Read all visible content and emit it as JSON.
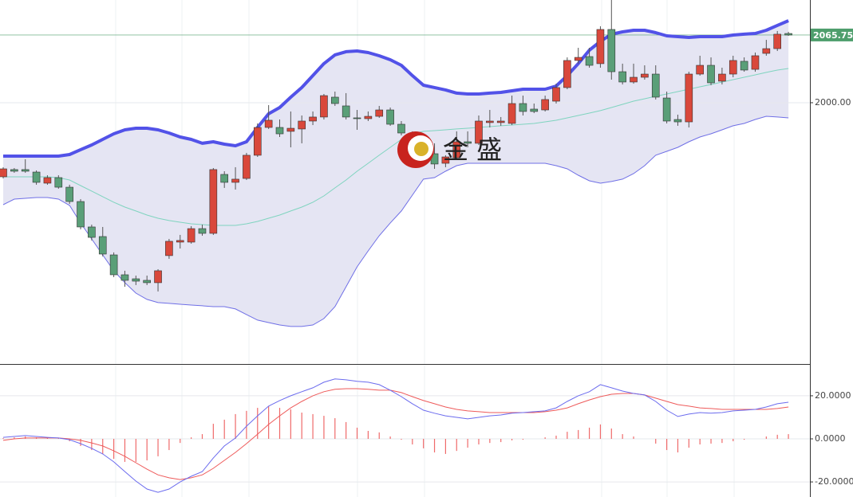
{
  "chart_data": [
    {
      "type": "candlestick",
      "open": [
        1928.1,
        1935.1,
        1935.1,
        1932.7,
        1921.9,
        1927.3,
        1918.0,
        1904.1,
        1879.4,
        1870.1,
        1852.3,
        1833.0,
        1829.1,
        1827.6,
        1825.3,
        1851.6,
        1864.7,
        1864.7,
        1877.8,
        1873.2,
        1930.4,
        1922.7,
        1926.5,
        1949.0,
        1976.0,
        1976.0,
        1972.2,
        1974.5,
        1982.2,
        1986.1,
        2005.4,
        1996.9,
        1985.3,
        1984.5,
        1986.8,
        1993.0,
        1979.1,
        1968.3,
        1960.6,
        1950.5,
        1941.2,
        1946.6,
        1962.1,
        1960.6,
        1980.7,
        1980.7,
        1979.9,
        1999.2,
        1993.8,
        1993.0,
        2001.5,
        2014.7,
        2041.0,
        2044.8,
        2037.9,
        2071.1,
        2030.1,
        2020.1,
        2024.7,
        2027.8,
        2004.6,
        1983.7,
        1981.4,
        2027.8,
        2036.3,
        2020.9,
        2027.8,
        2040.2,
        2032.4,
        2047.9,
        2052.5,
        2067.2
      ],
      "high": [
        1937.4,
        1936.6,
        1945.1,
        1934.3,
        1929.6,
        1929.6,
        1920.4,
        1906.4,
        1881.7,
        1879.4,
        1854.7,
        1836.9,
        1832.2,
        1832.2,
        1838.4,
        1867.8,
        1871.7,
        1880.2,
        1881.7,
        1936.6,
        1933.5,
        1937.4,
        1951.3,
        1979.9,
        1997.7,
        1983.7,
        1991.5,
        1987.6,
        1991.5,
        2008.5,
        2010.8,
        2009.3,
        1993.0,
        1991.5,
        1996.9,
        1995.3,
        1982.2,
        1972.2,
        1964.4,
        1960.6,
        1949.0,
        1972.2,
        1972.2,
        1987.6,
        1993.0,
        1986.1,
        2006.9,
        2006.9,
        1999.2,
        2006.9,
        2018.5,
        2044.0,
        2053.3,
        2053.3,
        2074.2,
        2099.7,
        2037.9,
        2037.9,
        2036.3,
        2036.3,
        2010.8,
        1988.4,
        2030.1,
        2045.6,
        2044.0,
        2034.0,
        2045.6,
        2044.0,
        2048.7,
        2061.0,
        2069.6,
        2068.8
      ],
      "low": [
        1926.5,
        1932.0,
        1932.0,
        1920.4,
        1920.4,
        1916.5,
        1901.8,
        1877.1,
        1866.3,
        1850.8,
        1830.7,
        1821.4,
        1823.0,
        1823.0,
        1816.8,
        1848.5,
        1858.5,
        1863.2,
        1870.9,
        1871.7,
        1917.3,
        1915.7,
        1925.0,
        1947.4,
        1974.5,
        1966.7,
        1956.7,
        1960.6,
        1978.3,
        1983.7,
        1996.9,
        1983.7,
        1973.7,
        1982.2,
        1985.3,
        1977.6,
        1968.3,
        1956.7,
        1949.0,
        1935.8,
        1937.4,
        1945.1,
        1956.7,
        1959.0,
        1976.0,
        1977.6,
        1978.3,
        1987.6,
        1989.9,
        1991.5,
        1999.2,
        2013.1,
        2037.9,
        2034.0,
        2034.0,
        2022.4,
        2017.7,
        2018.5,
        2022.4,
        2003.1,
        1979.9,
        1977.6,
        1976.0,
        2026.3,
        2017.0,
        2017.7,
        2024.7,
        2030.1,
        2030.1,
        2045.6,
        2050.2,
        2064.9
      ],
      "close": [
        1935.8,
        1933.5,
        1933.5,
        1922.7,
        1927.3,
        1918.0,
        1904.1,
        1879.4,
        1869.3,
        1853.1,
        1833.0,
        1827.6,
        1826.8,
        1825.3,
        1836.9,
        1865.5,
        1866.3,
        1877.8,
        1873.2,
        1935.1,
        1922.7,
        1925.8,
        1949.0,
        1976.0,
        1983.0,
        1969.8,
        1975.2,
        1982.2,
        1986.1,
        2006.9,
        1999.2,
        1986.1,
        1984.5,
        1986.8,
        1993.0,
        1979.1,
        1970.6,
        1960.6,
        1951.3,
        1940.5,
        1947.4,
        1962.1,
        1960.6,
        1982.2,
        1982.2,
        1982.2,
        1999.2,
        1991.5,
        1991.5,
        2003.1,
        2014.7,
        2041.0,
        2044.0,
        2036.3,
        2071.1,
        2030.1,
        2020.1,
        2024.7,
        2027.8,
        2005.4,
        1982.2,
        1981.4,
        2027.8,
        2036.3,
        2019.3,
        2027.8,
        2041.0,
        2031.7,
        2045.6,
        2052.5,
        2066.5,
        2065.7
      ],
      "up_color": "#d9483b",
      "down_color": "#5a9f78",
      "bands": {
        "upper": {
          "color": "#5252e8",
          "values": [
            1948.2,
            1948.2,
            1948.2,
            1948.2,
            1948.2,
            1948.2,
            1949.7,
            1954.4,
            1959.0,
            1964.4,
            1969.8,
            1973.7,
            1975.2,
            1975.2,
            1973.7,
            1970.6,
            1966.7,
            1964.4,
            1960.6,
            1962.1,
            1959.8,
            1958.2,
            1962.1,
            1976.0,
            1989.2,
            1995.3,
            2005.4,
            2014.7,
            2026.3,
            2037.9,
            2046.4,
            2049.5,
            2050.2,
            2048.7,
            2045.6,
            2041.7,
            2036.3,
            2026.3,
            2017.0,
            2014.7,
            2012.4,
            2009.3,
            2008.5,
            2008.5,
            2009.3,
            2010.0,
            2011.6,
            2013.1,
            2013.1,
            2013.1,
            2016.2,
            2026.3,
            2037.9,
            2051.0,
            2059.5,
            2066.5,
            2068.8,
            2070.3,
            2070.3,
            2068.0,
            2064.9,
            2064.1,
            2063.4,
            2064.1,
            2064.1,
            2064.1,
            2065.7,
            2066.5,
            2067.2,
            2070.3,
            2075.0,
            2079.6
          ]
        },
        "middle": {
          "color": "#7fd4bf",
          "values": [
            1928.1,
            1928.1,
            1928.1,
            1928.1,
            1928.1,
            1927.3,
            1925.0,
            1919.6,
            1914.2,
            1908.8,
            1903.4,
            1898.7,
            1894.9,
            1891.0,
            1887.9,
            1885.6,
            1884.0,
            1882.5,
            1881.7,
            1880.9,
            1880.9,
            1880.9,
            1882.5,
            1884.8,
            1887.9,
            1891.0,
            1894.9,
            1898.7,
            1903.4,
            1909.5,
            1917.3,
            1925.0,
            1933.5,
            1941.2,
            1949.0,
            1956.7,
            1964.4,
            1969.8,
            1972.2,
            1972.9,
            1973.7,
            1974.5,
            1975.2,
            1976.0,
            1976.8,
            1977.6,
            1978.3,
            1979.1,
            1979.9,
            1981.4,
            1983.0,
            1985.3,
            1987.6,
            1989.9,
            1992.3,
            1995.3,
            1998.4,
            2001.5,
            2003.8,
            2006.2,
            2008.5,
            2010.8,
            2013.1,
            2015.4,
            2017.7,
            2020.1,
            2022.4,
            2024.7,
            2027.0,
            2029.4,
            2031.7,
            2033.2
          ]
        },
        "lower": {
          "color": "#6f6fe6",
          "values": [
            1901.0,
            1906.4,
            1907.2,
            1908.0,
            1908.0,
            1906.4,
            1900.3,
            1883.3,
            1867.8,
            1852.3,
            1836.9,
            1825.3,
            1815.2,
            1809.1,
            1806.0,
            1805.2,
            1804.4,
            1803.6,
            1802.9,
            1802.1,
            1802.1,
            1799.8,
            1794.4,
            1789.0,
            1786.6,
            1784.3,
            1782.8,
            1782.8,
            1784.3,
            1790.5,
            1802.1,
            1821.4,
            1840.7,
            1856.2,
            1870.9,
            1883.3,
            1894.9,
            1910.3,
            1925.8,
            1927.3,
            1933.5,
            1938.9,
            1941.2,
            1941.2,
            1941.2,
            1941.2,
            1941.2,
            1941.2,
            1941.2,
            1941.2,
            1938.9,
            1935.8,
            1929.6,
            1924.2,
            1921.9,
            1923.5,
            1925.8,
            1931.2,
            1938.9,
            1949.0,
            1952.8,
            1956.7,
            1962.1,
            1966.7,
            1969.8,
            1973.7,
            1977.6,
            1979.9,
            1983.7,
            1986.8,
            1986.1,
            1985.3
          ]
        },
        "fill": "#e5e5f3"
      },
      "ylim": [
        1746.4,
        2099.7
      ],
      "yticks": [
        {
          "value": 2000,
          "label": "2000.00"
        }
      ],
      "last_price": 2065.75,
      "last_price_color": "#4e9e6c",
      "watermark": "金 盛",
      "grid": true
    },
    {
      "type": "macd",
      "dif": {
        "color": "#6b6bee",
        "values": [
          0.7,
          1.1,
          1.5,
          1.1,
          0.7,
          0.4,
          -0.4,
          -2.2,
          -4.4,
          -7.0,
          -10.7,
          -15.2,
          -19.6,
          -23.3,
          -24.8,
          -23.3,
          -20.0,
          -17.4,
          -15.2,
          -8.9,
          -3.3,
          0.4,
          5.9,
          10.7,
          15.2,
          17.8,
          20.0,
          21.9,
          23.7,
          26.3,
          27.8,
          27.4,
          26.7,
          26.3,
          25.2,
          22.6,
          19.6,
          16.3,
          13.3,
          11.9,
          10.7,
          10.0,
          9.3,
          10.0,
          10.7,
          11.1,
          11.9,
          12.2,
          12.6,
          13.0,
          14.4,
          17.4,
          20.0,
          21.9,
          25.2,
          23.7,
          22.2,
          21.1,
          20.4,
          17.4,
          13.3,
          10.4,
          11.5,
          12.2,
          11.9,
          12.2,
          13.0,
          13.3,
          13.7,
          14.8,
          16.3,
          17.0
        ]
      },
      "dea": {
        "color": "#ee5a5a",
        "values": [
          -0.7,
          0.0,
          0.4,
          0.4,
          0.4,
          0.4,
          0.0,
          -0.7,
          -1.9,
          -3.3,
          -5.6,
          -8.1,
          -11.1,
          -14.1,
          -16.7,
          -18.1,
          -18.9,
          -18.1,
          -16.7,
          -13.7,
          -10.0,
          -6.3,
          -2.2,
          2.2,
          6.7,
          10.7,
          14.4,
          17.4,
          20.0,
          21.9,
          23.0,
          23.3,
          23.3,
          23.0,
          22.6,
          22.6,
          21.5,
          19.6,
          17.8,
          16.3,
          14.8,
          13.7,
          13.0,
          12.6,
          12.2,
          12.2,
          12.2,
          12.2,
          12.2,
          12.6,
          13.3,
          14.4,
          16.3,
          18.1,
          19.6,
          20.7,
          21.1,
          21.1,
          20.4,
          18.9,
          17.4,
          15.9,
          15.2,
          14.4,
          14.1,
          13.7,
          13.7,
          13.7,
          13.7,
          13.7,
          14.1,
          14.8
        ]
      },
      "histogram": {
        "color": "#ef6a6a",
        "values": [
          0.4,
          0.7,
          1.1,
          0.7,
          0.7,
          0.4,
          -1.1,
          -3.3,
          -5.2,
          -7.0,
          -9.3,
          -10.7,
          -10.7,
          -10.0,
          -8.1,
          -5.2,
          -1.9,
          0.7,
          2.2,
          7.0,
          8.9,
          11.5,
          13.0,
          14.4,
          15.2,
          14.4,
          13.7,
          12.2,
          11.5,
          10.7,
          9.6,
          7.8,
          5.2,
          3.7,
          3.0,
          1.1,
          -0.4,
          -2.6,
          -4.4,
          -6.3,
          -7.0,
          -5.6,
          -4.1,
          -2.6,
          -1.9,
          -1.5,
          -0.7,
          -0.4,
          0.0,
          0.7,
          1.5,
          3.3,
          4.1,
          5.2,
          6.7,
          4.8,
          2.2,
          1.1,
          0.0,
          -2.2,
          -5.2,
          -6.3,
          -4.1,
          -2.6,
          -2.2,
          -1.9,
          -1.1,
          -0.4,
          0.0,
          1.1,
          1.9,
          2.2
        ]
      },
      "ylim": [
        -27.0,
        34.4
      ],
      "yticks": [
        {
          "value": 20,
          "label": "20.0000"
        },
        {
          "value": 0,
          "label": "0.0000"
        },
        {
          "value": -20,
          "label": "-20.0000"
        }
      ],
      "grid": true
    }
  ]
}
